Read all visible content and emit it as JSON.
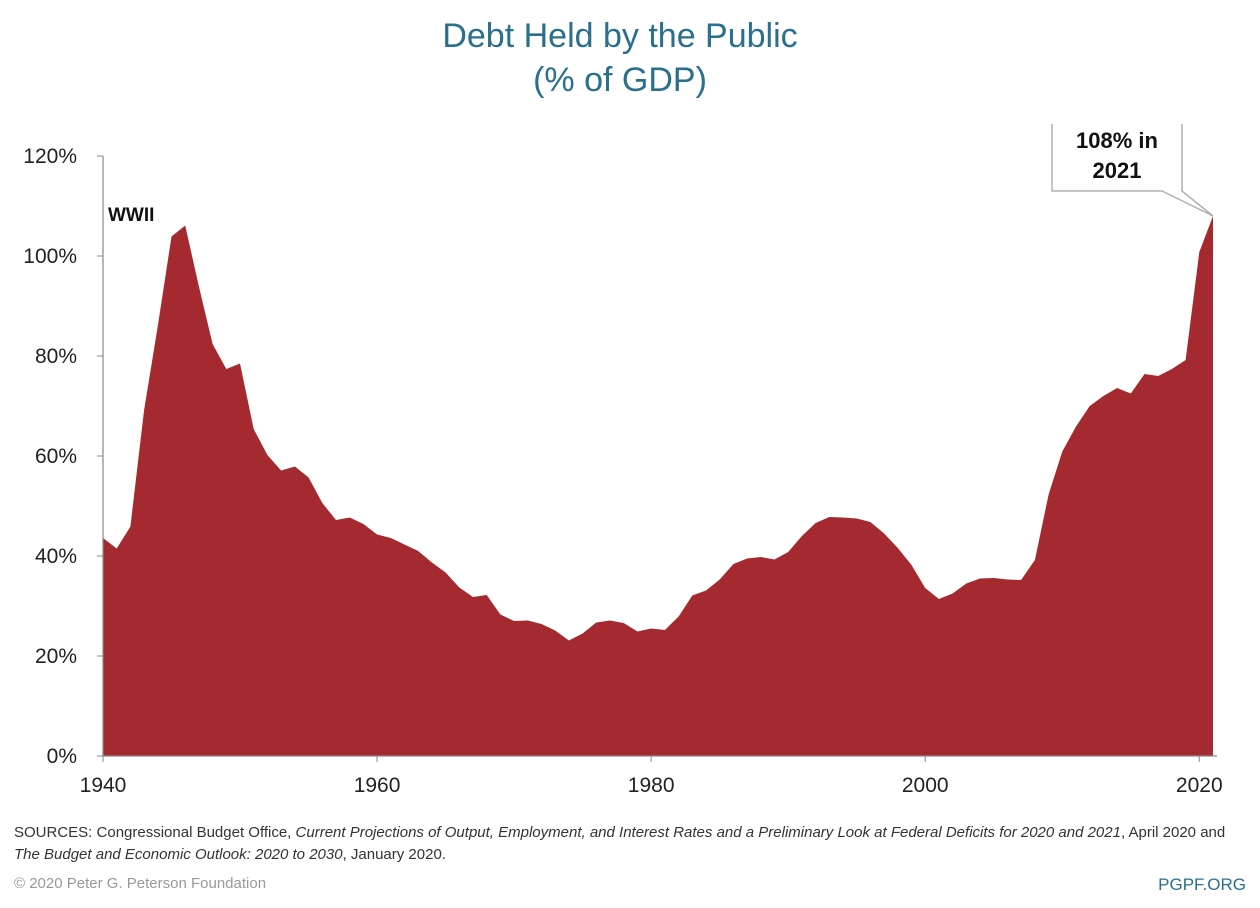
{
  "chart_data": {
    "type": "area",
    "title": "Debt Held by the Public",
    "subtitle": "(% of GDP)",
    "xlabel": "",
    "ylabel": "",
    "xlim": [
      1940,
      2021
    ],
    "ylim": [
      0,
      120
    ],
    "x_ticks": [
      "1940",
      "1960",
      "1980",
      "2000",
      "2020"
    ],
    "x_tick_values": [
      1940,
      1960,
      1980,
      2000,
      2020
    ],
    "y_ticks": [
      "0%",
      "20%",
      "40%",
      "60%",
      "80%",
      "100%",
      "120%"
    ],
    "y_tick_values": [
      0,
      20,
      40,
      60,
      80,
      100,
      120
    ],
    "grid": false,
    "fill_color": "#a52a30",
    "series": [
      {
        "x": [
          1940,
          1941,
          1942,
          1943,
          1944,
          1945,
          1946,
          1947,
          1948,
          1949,
          1950,
          1951,
          1952,
          1953,
          1954,
          1955,
          1956,
          1957,
          1958,
          1959,
          1960,
          1961,
          1962,
          1963,
          1964,
          1965,
          1966,
          1967,
          1968,
          1969,
          1970,
          1971,
          1972,
          1973,
          1974,
          1975,
          1976,
          1977,
          1978,
          1979,
          1980,
          1981,
          1982,
          1983,
          1984,
          1985,
          1986,
          1987,
          1988,
          1989,
          1990,
          1991,
          1992,
          1993,
          1994,
          1995,
          1996,
          1997,
          1998,
          1999,
          2000,
          2001,
          2002,
          2003,
          2004,
          2005,
          2006,
          2007,
          2008,
          2009,
          2010,
          2011,
          2012,
          2013,
          2014,
          2015,
          2016,
          2017,
          2018,
          2019,
          2020,
          2021
        ],
        "values": [
          43.6,
          41.5,
          45.9,
          69.2,
          86.0,
          103.9,
          106.1,
          93.9,
          82.4,
          77.4,
          78.5,
          65.4,
          60.2,
          57.1,
          57.9,
          55.7,
          50.6,
          47.2,
          47.7,
          46.4,
          44.3,
          43.6,
          42.3,
          41.0,
          38.7,
          36.7,
          33.7,
          31.8,
          32.2,
          28.3,
          27.0,
          27.1,
          26.4,
          25.1,
          23.1,
          24.5,
          26.7,
          27.1,
          26.6,
          24.9,
          25.5,
          25.2,
          27.9,
          32.1,
          33.1,
          35.3,
          38.4,
          39.5,
          39.8,
          39.3,
          40.8,
          44.0,
          46.6,
          47.8,
          47.7,
          47.5,
          46.8,
          44.5,
          41.6,
          38.2,
          33.6,
          31.4,
          32.5,
          34.5,
          35.5,
          35.6,
          35.3,
          35.2,
          39.2,
          52.3,
          60.9,
          65.9,
          70.0,
          72.0,
          73.6,
          72.5,
          76.4,
          76.0,
          77.4,
          79.2,
          100.8,
          108.0
        ]
      }
    ],
    "annotations": [
      {
        "text": "WWII",
        "x": 1942,
        "y": 108
      },
      {
        "text_lines": [
          "108% in",
          "2021"
        ],
        "x": 2021,
        "y": 108
      }
    ]
  },
  "sources": {
    "prefix": "SOURCES: Congressional Budget Office, ",
    "italic1": "Current Projections of Output, Employment, and Interest Rates and a Preliminary Look at Federal Deficits for 2020 and 2021",
    "middle": ", April 2020 and ",
    "italic2": "The Budget and Economic Outlook: 2020 to 2030",
    "suffix": ", January 2020."
  },
  "footer": {
    "copyright": "© 2020 Peter G. Peterson Foundation",
    "site": "PGPF.ORG"
  }
}
